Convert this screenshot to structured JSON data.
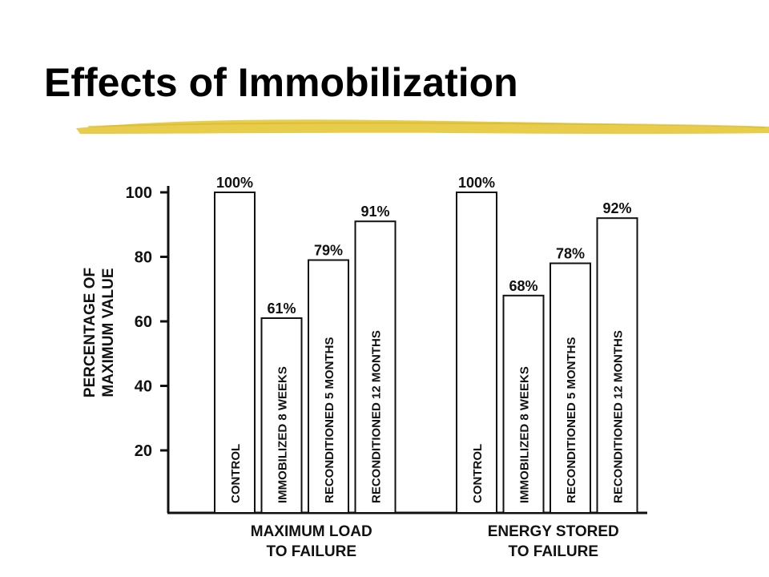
{
  "slide": {
    "title": "Effects of Immobilization",
    "underline_color": "#e6c83a"
  },
  "chart_data": {
    "type": "bar",
    "ylabel_lines": [
      "PERCENTAGE OF",
      "MAXIMUM VALUE"
    ],
    "ylim": [
      0,
      100
    ],
    "yticks": [
      20,
      40,
      60,
      80,
      100
    ],
    "ytick_labels": [
      "20",
      "40",
      "60",
      "80",
      "100"
    ],
    "grid": false,
    "groups": [
      {
        "label_lines": [
          "MAXIMUM LOAD",
          "TO FAILURE"
        ],
        "bars": [
          {
            "category": "CONTROL",
            "value": 100,
            "value_label": "100%"
          },
          {
            "category": "IMMOBILIZED 8 WEEKS",
            "value": 61,
            "value_label": "61%"
          },
          {
            "category": "RECONDITIONED 5 MONTHS",
            "value": 79,
            "value_label": "79%"
          },
          {
            "category": "RECONDITIONED 12 MONTHS",
            "value": 91,
            "value_label": "91%"
          }
        ]
      },
      {
        "label_lines": [
          "ENERGY STORED",
          "TO FAILURE"
        ],
        "bars": [
          {
            "category": "CONTROL",
            "value": 100,
            "value_label": "100%"
          },
          {
            "category": "IMMOBILIZED 8 WEEKS",
            "value": 68,
            "value_label": "68%"
          },
          {
            "category": "RECONDITIONED 5 MONTHS",
            "value": 78,
            "value_label": "78%"
          },
          {
            "category": "RECONDITIONED 12 MONTHS",
            "value": 92,
            "value_label": "92%"
          }
        ]
      }
    ],
    "colors": {
      "bar_fill": "#ffffff",
      "stroke": "#111111"
    }
  }
}
